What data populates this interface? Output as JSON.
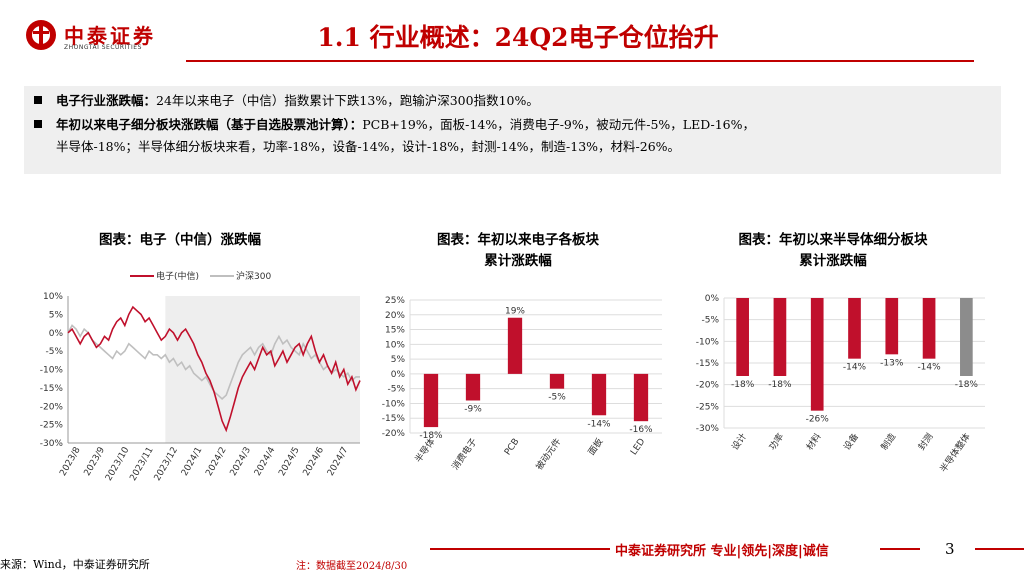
{
  "logo": {
    "name": "中泰证券",
    "english": "ZHONGTAI SECURITIES"
  },
  "page_title": "1.1 行业概述：24Q2电子仓位抬升",
  "summary": {
    "bullet1_label": "电子行业涨跌幅：",
    "bullet1_text": "24年以来电子（中信）指数累计下跌13%，跑输沪深300指数10%。",
    "bullet2_label": "年初以来电子细分板块涨跌幅（基于自选股票池计算）：",
    "bullet2_text": "PCB+19%，面板-14%，消费电子-9%，被动元件-5%，LED-16%，",
    "bullet2_text_cont": "半导体-18%；半导体细分板块来看，功率-18%，设备-14%，设计-18%，封测-14%，制造-13%，材料-26%。"
  },
  "chart_titles": {
    "c1": "图表：电子（中信）涨跌幅",
    "c2_line1": "图表：年初以来电子各板块",
    "c2_line2": "累计涨跌幅",
    "c3_line1": "图表：年初以来半导体细分板块",
    "c3_line2": "累计涨跌幅"
  },
  "chart_data": [
    {
      "type": "line",
      "title": "图表：电子（中信）涨跌幅",
      "legend": [
        "电子(中信)",
        "沪深300"
      ],
      "colors": [
        "#c0102c",
        "#bfbfbf"
      ],
      "y_ticks": [
        "10%",
        "5%",
        "0%",
        "-5%",
        "-10%",
        "-15%",
        "-20%",
        "-25%",
        "-30%"
      ],
      "ylim": [
        -30,
        10
      ],
      "x_ticks": [
        "2023/8",
        "2023/9",
        "2023/10",
        "2023/11",
        "2023/12",
        "2024/1",
        "2024/2",
        "2024/3",
        "2024/4",
        "2024/5",
        "2024/6",
        "2024/7"
      ],
      "shaded_from_index": 4,
      "series": [
        {
          "name": "电子(中信)",
          "values": [
            0,
            1,
            -1,
            -3,
            -1,
            0,
            -2,
            -4,
            -3,
            -1,
            -2,
            1,
            3,
            4,
            2,
            5,
            7,
            6,
            5,
            3,
            4,
            2,
            0,
            -2,
            -1,
            1,
            0,
            -2,
            0,
            1,
            -1,
            -3,
            -6,
            -8,
            -11,
            -13,
            -16,
            -20,
            -24,
            -26.5,
            -23,
            -19,
            -15,
            -12,
            -10,
            -8,
            -10,
            -7,
            -4,
            -6,
            -5,
            -9,
            -7,
            -5,
            -8,
            -6,
            -4,
            -3,
            -6,
            -3,
            -1,
            -5,
            -8,
            -6,
            -9,
            -11,
            -8,
            -12,
            -10,
            -14,
            -12,
            -15.5,
            -13
          ]
        },
        {
          "name": "沪深300",
          "values": [
            0,
            2,
            1,
            -1,
            1,
            0,
            -2,
            -3,
            -4,
            -5,
            -6,
            -7,
            -5,
            -6,
            -5,
            -3,
            -4,
            -5,
            -6,
            -7,
            -5,
            -6,
            -6,
            -7,
            -6,
            -8,
            -7,
            -9,
            -8,
            -10,
            -9,
            -11,
            -12,
            -13,
            -12,
            -14,
            -16,
            -17,
            -18,
            -17,
            -14,
            -11,
            -8,
            -6,
            -5,
            -4,
            -6,
            -4,
            -3,
            -5,
            -6,
            -3,
            -1,
            -3,
            -2,
            -4,
            -5,
            -6,
            -3,
            -5,
            -7,
            -6,
            -8,
            -10,
            -9,
            -11,
            -10,
            -11,
            -12,
            -11,
            -13,
            -12,
            -12
          ]
        }
      ]
    },
    {
      "type": "bar",
      "title": "图表：年初以来电子各板块累计涨跌幅",
      "categories": [
        "半导体",
        "消费电子",
        "PCB",
        "被动元件",
        "面板",
        "LED"
      ],
      "values": [
        -18,
        -9,
        19,
        -5,
        -14,
        -16
      ],
      "labels": [
        "-18%",
        "-9%",
        "19%",
        "-5%",
        "-14%",
        "-16%"
      ],
      "y_ticks": [
        "25%",
        "20%",
        "15%",
        "10%",
        "5%",
        "0%",
        "-5%",
        "-10%",
        "-15%",
        "-20%"
      ],
      "ylim": [
        -20,
        25
      ],
      "color": "#c0102c"
    },
    {
      "type": "bar",
      "title": "图表：年初以来半导体细分板块累计涨跌幅",
      "categories": [
        "设计",
        "功率",
        "材料",
        "设备",
        "制造",
        "封测",
        "半导体整体"
      ],
      "values": [
        -18,
        -18,
        -26,
        -14,
        -13,
        -14,
        -18
      ],
      "labels": [
        "-18%",
        "-18%",
        "-26%",
        "-14%",
        "-13%",
        "-14%",
        "-18%"
      ],
      "y_ticks": [
        "0%",
        "-5%",
        "-10%",
        "-15%",
        "-20%",
        "-25%",
        "-30%"
      ],
      "ylim": [
        -30,
        0
      ],
      "colors": [
        "#c0102c",
        "#c0102c",
        "#c0102c",
        "#c0102c",
        "#c0102c",
        "#c0102c",
        "#8c8c8c"
      ]
    }
  ],
  "footer": {
    "source": "来源：Wind，中泰证券研究所",
    "note": "注：数据截至2024/8/30",
    "brand": "中泰证券研究所 专业|领先|深度|诚信",
    "page_number": "3"
  }
}
